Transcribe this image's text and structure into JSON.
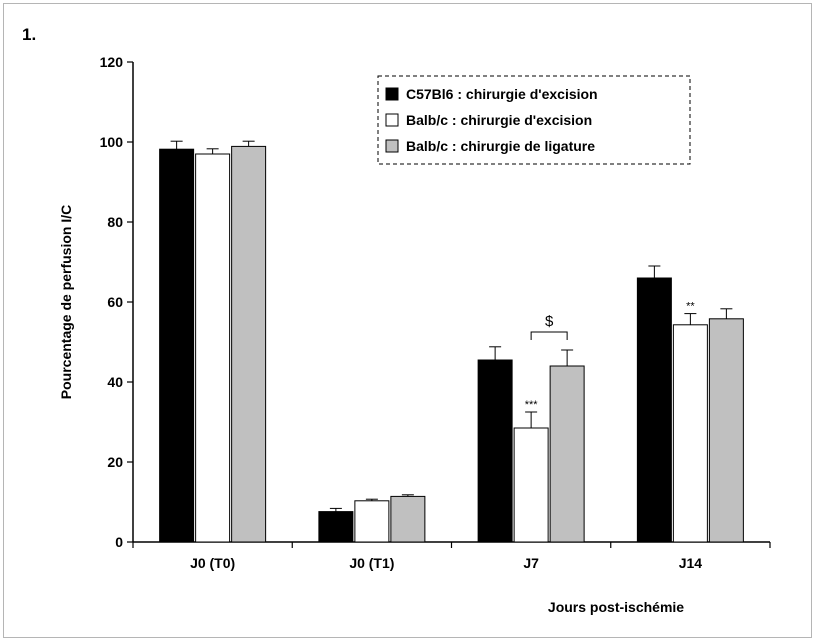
{
  "panel_label": "1.",
  "chart_data": {
    "type": "bar",
    "xlabel": "Jours post-ischémie",
    "ylabel": "Pourcentage de perfusion I/C",
    "ylim": [
      0,
      120
    ],
    "yticks": [
      0,
      20,
      40,
      60,
      80,
      100,
      120
    ],
    "categories": [
      "J0 (T0)",
      "J0 (T1)",
      "J7",
      "J14"
    ],
    "legend_position": "top-right",
    "series": [
      {
        "name": "C57Bl6 : chirurgie d'excision",
        "color": "#000000",
        "values": [
          98.2,
          7.6,
          45.5,
          66.0
        ],
        "errors": [
          2.0,
          0.8,
          3.3,
          3.0
        ]
      },
      {
        "name": "Balb/c : chirurgie d'excision",
        "color": "#ffffff",
        "values": [
          97.0,
          10.3,
          28.5,
          54.3
        ],
        "errors": [
          1.3,
          0.4,
          4.0,
          2.8
        ]
      },
      {
        "name": "Balb/c : chirurgie de ligature",
        "color": "#c0c0c0",
        "values": [
          98.9,
          11.4,
          44.0,
          55.8
        ],
        "errors": [
          1.3,
          0.4,
          4.0,
          2.5
        ]
      }
    ],
    "annotations": [
      {
        "text": "***",
        "category": "J7",
        "series": 1
      },
      {
        "text": "**",
        "category": "J14",
        "series": 1
      },
      {
        "text": "$",
        "category": "J7",
        "bracket_series": [
          1,
          2
        ]
      }
    ]
  }
}
